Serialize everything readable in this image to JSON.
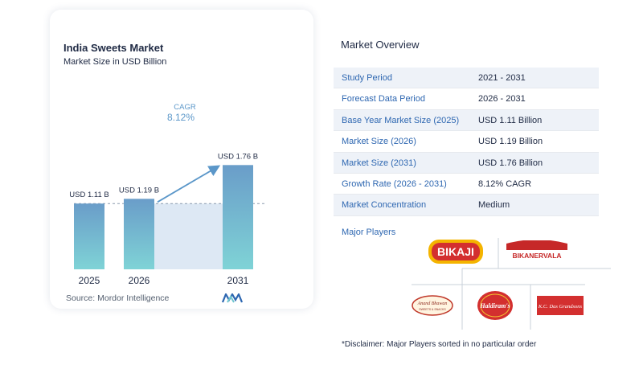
{
  "left_panel": {
    "title": "India Sweets Market",
    "subtitle": "Market Size in USD Billion",
    "source": "Source:  Mordor Intelligence"
  },
  "chart_data": {
    "type": "bar",
    "title": "India Sweets Market",
    "subtitle": "Market Size in USD Billion",
    "categories": [
      "2025",
      "2026",
      "2031"
    ],
    "values": [
      1.11,
      1.19,
      1.76
    ],
    "value_labels": [
      "USD 1.11 B",
      "USD 1.19 B",
      "USD 1.76 B"
    ],
    "cagr_label": "CAGR",
    "cagr_value": "8.12%",
    "ylim": [
      0,
      1.9
    ],
    "grid": false,
    "colors": {
      "bar_top": "#6a9dc9",
      "bar_bottom": "#7fd3d6",
      "shade": "#dde8f4",
      "arrow": "#5b97c9",
      "dash": "#8a9aae"
    }
  },
  "overview": {
    "title": "Market Overview",
    "rows": [
      {
        "label": "Study Period",
        "value": "2021 - 2031"
      },
      {
        "label": "Forecast Data Period",
        "value": "2026 - 2031"
      },
      {
        "label": "Base Year Market Size (2025)",
        "value": "USD 1.11 Billion"
      },
      {
        "label": "Market Size (2026)",
        "value": "USD 1.19 Billion"
      },
      {
        "label": "Market Size (2031)",
        "value": "USD 1.76 Billion"
      },
      {
        "label": "Growth Rate (2026 - 2031)",
        "value": "8.12% CAGR"
      },
      {
        "label": "Market Concentration",
        "value": "Medium"
      }
    ]
  },
  "players": {
    "title": "Major Players",
    "logos": [
      "BIKAJI",
      "BIKANERVALA",
      "Anand Bhawan",
      "Haldiram's",
      "K.C. Das Grandsons"
    ]
  },
  "disclaimer": "*Disclaimer: Major Players sorted in no particular order"
}
